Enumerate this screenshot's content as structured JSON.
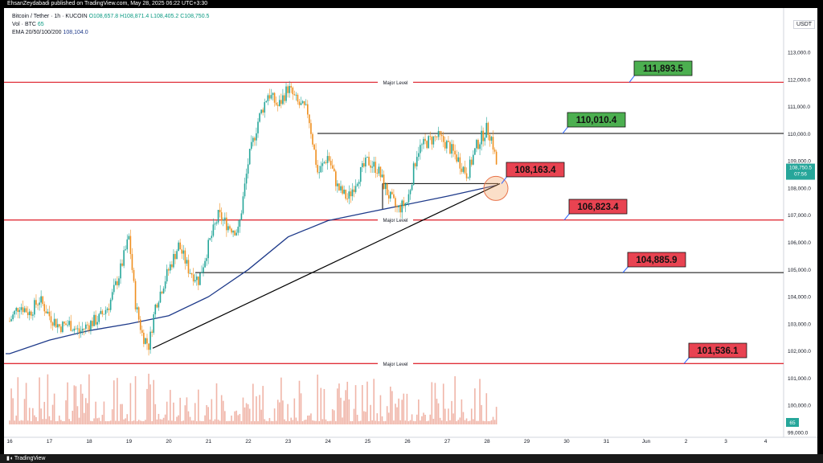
{
  "header": {
    "publisher_line": "EhsanZeydabadi published on TradingView.com, May 28, 2025 06:22 UTC+3:30"
  },
  "legend": {
    "symbol": "Bitcoin / Tether · 1h · KUCOIN",
    "ohlc": "O108,657.8 H108,871.4 L108,405.2 C108,750.5",
    "vol": "Vol · BTC",
    "vol_value": "65",
    "ema": "EMA 20/50/100/200",
    "ema_value": "108,104.0"
  },
  "price_axis": {
    "currency": "USDT",
    "last_price": "108,750.5",
    "countdown": "07:56",
    "vol_badge": "65"
  },
  "footer": {
    "brand": "TradingView"
  },
  "levels": {
    "major_label": "Major Level",
    "labels": [
      "111,893.5",
      "110,010.4",
      "108,163.4",
      "106,823.4",
      "104,885.9",
      "101,536.1"
    ]
  },
  "colors": {
    "up": "#26a69a",
    "down": "#ef8f1f",
    "level_red": "#e0303a",
    "ema": "#1e3a8a",
    "green_box": "#4caf50",
    "red_box": "#e84351",
    "volume": "#f0b5a8"
  },
  "chart_data": {
    "type": "line",
    "title": "Bitcoin / Tether · 1h · KUCOIN",
    "x_tick_labels": [
      "16",
      "17",
      "18",
      "19",
      "20",
      "21",
      "22",
      "23",
      "24",
      "25",
      "26",
      "27",
      "28",
      "29",
      "30",
      "31",
      "Jun",
      "2",
      "3",
      "4"
    ],
    "y_tick_labels": [
      "99,000.0",
      "100,000.0",
      "101,000.0",
      "102,000.0",
      "103,000.0",
      "104,000.0",
      "105,000.0",
      "106,000.0",
      "107,000.0",
      "108,000.0",
      "109,000.0",
      "110,000.0",
      "111,000.0",
      "112,000.0",
      "113,000.0"
    ],
    "ylim": [
      99000,
      114000
    ],
    "price_close_path": [
      {
        "x": "May 16 00:00",
        "y": 103100
      },
      {
        "x": "May 16 06:00",
        "y": 103700
      },
      {
        "x": "May 16 12:00",
        "y": 103400
      },
      {
        "x": "May 16 18:00",
        "y": 103900
      },
      {
        "x": "May 17 00:00",
        "y": 103300
      },
      {
        "x": "May 17 06:00",
        "y": 102900
      },
      {
        "x": "May 17 12:00",
        "y": 103000
      },
      {
        "x": "May 17 18:00",
        "y": 102700
      },
      {
        "x": "May 18 00:00",
        "y": 103000
      },
      {
        "x": "May 18 06:00",
        "y": 103200
      },
      {
        "x": "May 18 12:00",
        "y": 103700
      },
      {
        "x": "May 18 18:00",
        "y": 104800
      },
      {
        "x": "May 19 00:00",
        "y": 106200
      },
      {
        "x": "May 19 04:00",
        "y": 103700
      },
      {
        "x": "May 19 08:00",
        "y": 102600
      },
      {
        "x": "May 19 12:00",
        "y": 102200
      },
      {
        "x": "May 19 16:00",
        "y": 103700
      },
      {
        "x": "May 20 00:00",
        "y": 105000
      },
      {
        "x": "May 20 06:00",
        "y": 105900
      },
      {
        "x": "May 20 12:00",
        "y": 105000
      },
      {
        "x": "May 20 18:00",
        "y": 104600
      },
      {
        "x": "May 21 00:00",
        "y": 105900
      },
      {
        "x": "May 21 06:00",
        "y": 107000
      },
      {
        "x": "May 21 12:00",
        "y": 106600
      },
      {
        "x": "May 21 18:00",
        "y": 106400
      },
      {
        "x": "May 22 00:00",
        "y": 109000
      },
      {
        "x": "May 22 06:00",
        "y": 110500
      },
      {
        "x": "May 22 12:00",
        "y": 111500
      },
      {
        "x": "May 22 18:00",
        "y": 111000
      },
      {
        "x": "May 23 00:00",
        "y": 111700
      },
      {
        "x": "May 23 06:00",
        "y": 111100
      },
      {
        "x": "May 23 12:00",
        "y": 110800
      },
      {
        "x": "May 23 18:00",
        "y": 108500
      },
      {
        "x": "May 24 00:00",
        "y": 109200
      },
      {
        "x": "May 24 06:00",
        "y": 108000
      },
      {
        "x": "May 24 12:00",
        "y": 107600
      },
      {
        "x": "May 24 18:00",
        "y": 108400
      },
      {
        "x": "May 25 00:00",
        "y": 109000
      },
      {
        "x": "May 25 06:00",
        "y": 108700
      },
      {
        "x": "May 25 12:00",
        "y": 107800
      },
      {
        "x": "May 25 18:00",
        "y": 107200
      },
      {
        "x": "May 26 00:00",
        "y": 107500
      },
      {
        "x": "May 26 06:00",
        "y": 109400
      },
      {
        "x": "May 26 12:00",
        "y": 109700
      },
      {
        "x": "May 26 18:00",
        "y": 109900
      },
      {
        "x": "May 27 00:00",
        "y": 109600
      },
      {
        "x": "May 27 06:00",
        "y": 109100
      },
      {
        "x": "May 27 12:00",
        "y": 108500
      },
      {
        "x": "May 27 18:00",
        "y": 109600
      },
      {
        "x": "May 28 00:00",
        "y": 110200
      },
      {
        "x": "May 28 03:00",
        "y": 109800
      },
      {
        "x": "May 28 06:00",
        "y": 108750
      }
    ],
    "ema_path": [
      {
        "x": "May 16 00:00",
        "y": 101900
      },
      {
        "x": "May 17 00:00",
        "y": 102400
      },
      {
        "x": "May 18 00:00",
        "y": 102750
      },
      {
        "x": "May 19 00:00",
        "y": 103000
      },
      {
        "x": "May 20 00:00",
        "y": 103300
      },
      {
        "x": "May 21 00:00",
        "y": 104000
      },
      {
        "x": "May 22 00:00",
        "y": 105000
      },
      {
        "x": "May 23 00:00",
        "y": 106200
      },
      {
        "x": "May 24 00:00",
        "y": 106800
      },
      {
        "x": "May 25 00:00",
        "y": 107100
      },
      {
        "x": "May 26 00:00",
        "y": 107400
      },
      {
        "x": "May 27 00:00",
        "y": 107700
      },
      {
        "x": "May 28 06:00",
        "y": 108104
      }
    ],
    "horizontal_levels": [
      111893.5,
      110010.4,
      108163.4,
      106823.4,
      104885.9,
      101536.1
    ],
    "trendline": [
      {
        "x": "May 19 12:00",
        "y": 102100
      },
      {
        "x": "May 28 06:00",
        "y": 108163.4
      }
    ]
  }
}
